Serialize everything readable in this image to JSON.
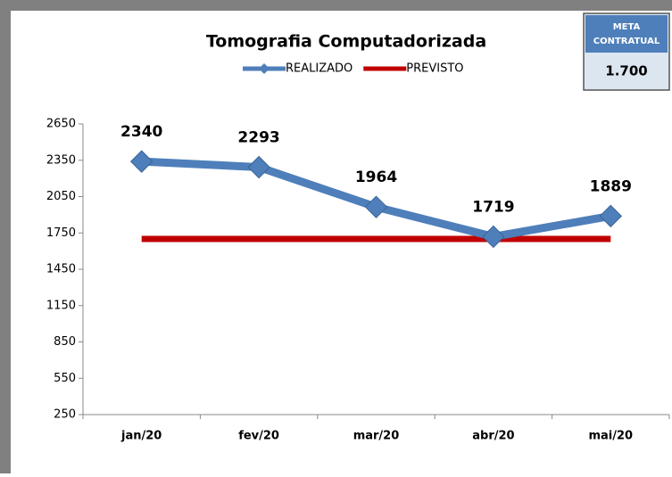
{
  "chart_data": {
    "type": "line",
    "title": "Tomografia Computadorizada",
    "categories": [
      "jan/20",
      "fev/20",
      "mar/20",
      "abr/20",
      "mai/20"
    ],
    "series": [
      {
        "name": "REALIZADO",
        "color": "#4f7fba",
        "values": [
          2340,
          2293,
          1964,
          1719,
          1889
        ]
      },
      {
        "name": "PREVISTO",
        "color": "#c00000",
        "values": [
          1700,
          1700,
          1700,
          1700,
          1700
        ]
      }
    ],
    "ylim": [
      250,
      2650
    ],
    "yticks": [
      250,
      550,
      850,
      1150,
      1450,
      1750,
      2050,
      2350,
      2650
    ],
    "grid": false,
    "legend": "top"
  },
  "meta_box": {
    "title": [
      "META",
      "CONTRATUAL"
    ],
    "value": "1.700"
  }
}
